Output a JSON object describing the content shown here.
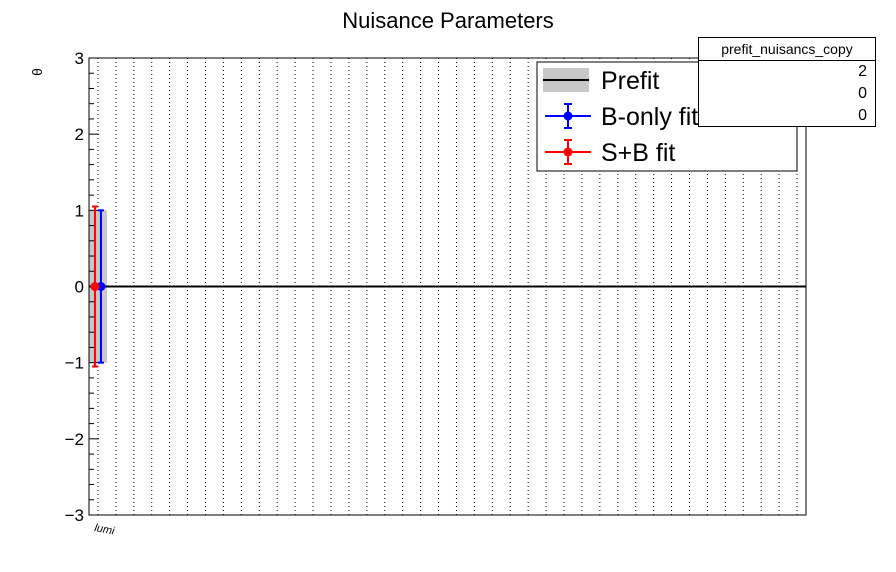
{
  "chart_data": {
    "type": "scatter",
    "title": "Nuisance Parameters",
    "xlabel": "",
    "ylabel": "θ",
    "ylim": [
      -3,
      3
    ],
    "yticks": [
      {
        "value": 3,
        "label": "3"
      },
      {
        "value": 2,
        "label": "2"
      },
      {
        "value": 1,
        "label": "1"
      },
      {
        "value": 0,
        "label": "0"
      },
      {
        "value": -1,
        "label": "−1"
      },
      {
        "value": -2,
        "label": "−2"
      },
      {
        "value": -3,
        "label": "−3"
      }
    ],
    "categories": [
      "lumi"
    ],
    "n_bins": 40,
    "grid": true,
    "legend_position": "top-right",
    "prefit": {
      "label": "Prefit",
      "value": 0,
      "error": 1,
      "line_color": "#000000",
      "band_color": "#c8c8c8"
    },
    "series": [
      {
        "name": "B-only fit",
        "color": "#0000ff",
        "values": [
          0
        ],
        "errors": [
          1.0
        ]
      },
      {
        "name": "S+B fit",
        "color": "#ff0000",
        "values": [
          0
        ],
        "errors": [
          1.05
        ]
      }
    ]
  },
  "stats_box": {
    "title": "prefit_nuisancs_copy",
    "rows": [
      "2",
      "0",
      "0"
    ]
  }
}
